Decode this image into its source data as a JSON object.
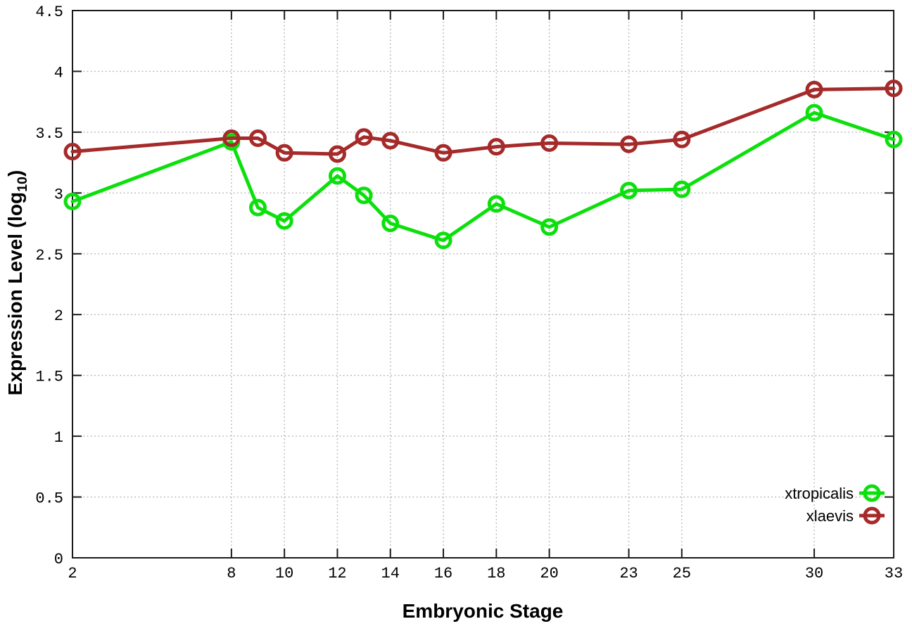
{
  "chart_data": {
    "type": "line",
    "title": "",
    "xlabel": "Embryonic Stage",
    "ylabel": "Expression Level (log10)",
    "ylabel_parts": {
      "prefix": "Expression Level (log",
      "sub": "10",
      "suffix": ")"
    },
    "x": [
      2,
      8,
      9,
      10,
      12,
      13,
      14,
      16,
      18,
      20,
      23,
      25,
      30,
      33
    ],
    "series": [
      {
        "name": "xtropicalis",
        "color": "#0ce00c",
        "values": [
          2.93,
          3.42,
          2.88,
          2.77,
          3.14,
          2.98,
          2.75,
          2.61,
          2.91,
          2.72,
          3.02,
          3.03,
          3.66,
          3.44
        ]
      },
      {
        "name": "xlaevis",
        "color": "#a52a2a",
        "values": [
          3.34,
          3.45,
          3.45,
          3.33,
          3.32,
          3.46,
          3.43,
          3.33,
          3.38,
          3.41,
          3.4,
          3.44,
          3.85,
          3.86
        ]
      }
    ],
    "xlim": [
      2,
      33
    ],
    "ylim": [
      0,
      4.5
    ],
    "xtick_labels": [
      "2",
      "8",
      "10",
      "12",
      "14",
      "16",
      "18",
      "20",
      "23",
      "25",
      "30",
      "33"
    ],
    "ytick_labels": [
      "0",
      "0.5",
      "1",
      "1.5",
      "2",
      "2.5",
      "3",
      "3.5",
      "4",
      "4.5"
    ],
    "grid": true,
    "legend_position": "bottom-right",
    "marker": "open-circle",
    "axis_color": "#1a1a1a",
    "grid_color": "#aaaaaa",
    "text_color": "#000000"
  }
}
